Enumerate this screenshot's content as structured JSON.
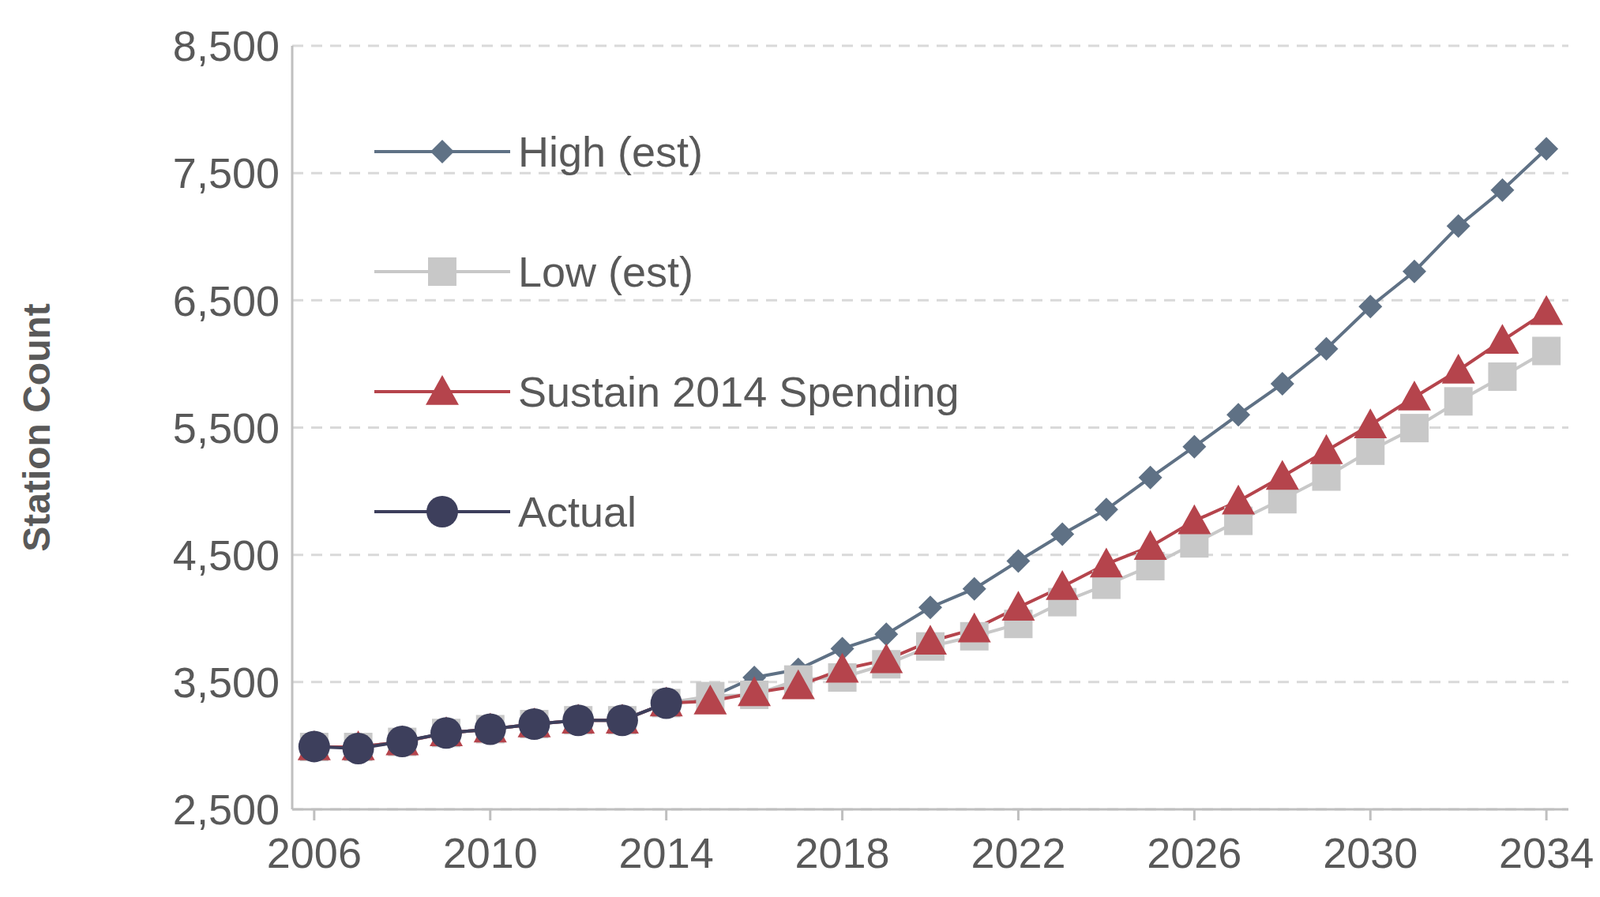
{
  "chart_data": {
    "type": "line",
    "y_label": "Station Count",
    "x": [
      2006,
      2007,
      2008,
      2009,
      2010,
      2011,
      2012,
      2013,
      2014,
      2015,
      2016,
      2017,
      2018,
      2019,
      2020,
      2021,
      2022,
      2023,
      2024,
      2025,
      2026,
      2027,
      2028,
      2029,
      2030,
      2031,
      2032,
      2033,
      2034
    ],
    "xlim": [
      2005.5,
      2034.5
    ],
    "xticks": [
      2006,
      2010,
      2014,
      2018,
      2022,
      2026,
      2030,
      2034
    ],
    "ylim": [
      2500,
      8500
    ],
    "yticks": [
      {
        "value": 2500,
        "label": "2,500"
      },
      {
        "value": 3500,
        "label": "3,500"
      },
      {
        "value": 4500,
        "label": "4,500"
      },
      {
        "value": 5500,
        "label": "5,500"
      },
      {
        "value": 6500,
        "label": "6,500"
      },
      {
        "value": 7500,
        "label": "7,500"
      },
      {
        "value": 8500,
        "label": "8,500"
      }
    ],
    "grid": true,
    "legend": "upper left",
    "series": [
      {
        "name": "High (est)",
        "color": "#5f7185",
        "marker": "diamond",
        "values": [
          2990,
          2990,
          3030,
          3100,
          3130,
          3170,
          3200,
          3200,
          3335,
          3380,
          3536,
          3600,
          3763,
          3876,
          4087,
          4233,
          4451,
          4662,
          4856,
          5107,
          5350,
          5601,
          5844,
          6119,
          6451,
          6727,
          7083,
          7366,
          7690
        ]
      },
      {
        "name": "Low (est)",
        "color": "#c8c8c8",
        "marker": "square",
        "values": [
          2990,
          2990,
          3030,
          3100,
          3130,
          3170,
          3200,
          3200,
          3335,
          3390,
          3400,
          3520,
          3536,
          3640,
          3780,
          3860,
          3957,
          4128,
          4265,
          4411,
          4590,
          4767,
          4937,
          5115,
          5318,
          5496,
          5706,
          5900,
          6102
        ]
      },
      {
        "name": "Sustain 2014 Spending",
        "color": "#b5444c",
        "marker": "triangle",
        "values": [
          2990,
          2990,
          3030,
          3100,
          3130,
          3170,
          3200,
          3200,
          3335,
          3350,
          3415,
          3470,
          3600,
          3675,
          3820,
          3917,
          4087,
          4250,
          4427,
          4565,
          4767,
          4921,
          5115,
          5318,
          5520,
          5739,
          5950,
          6184,
          6411
        ]
      },
      {
        "name": "Actual",
        "color": "#3d3f5c",
        "marker": "circle",
        "values": [
          2994,
          2978,
          3034,
          3100,
          3130,
          3170,
          3200,
          3200,
          3335,
          null,
          null,
          null,
          null,
          null,
          null,
          null,
          null,
          null,
          null,
          null,
          null,
          null,
          null,
          null,
          null,
          null,
          null,
          null,
          null
        ]
      }
    ]
  }
}
